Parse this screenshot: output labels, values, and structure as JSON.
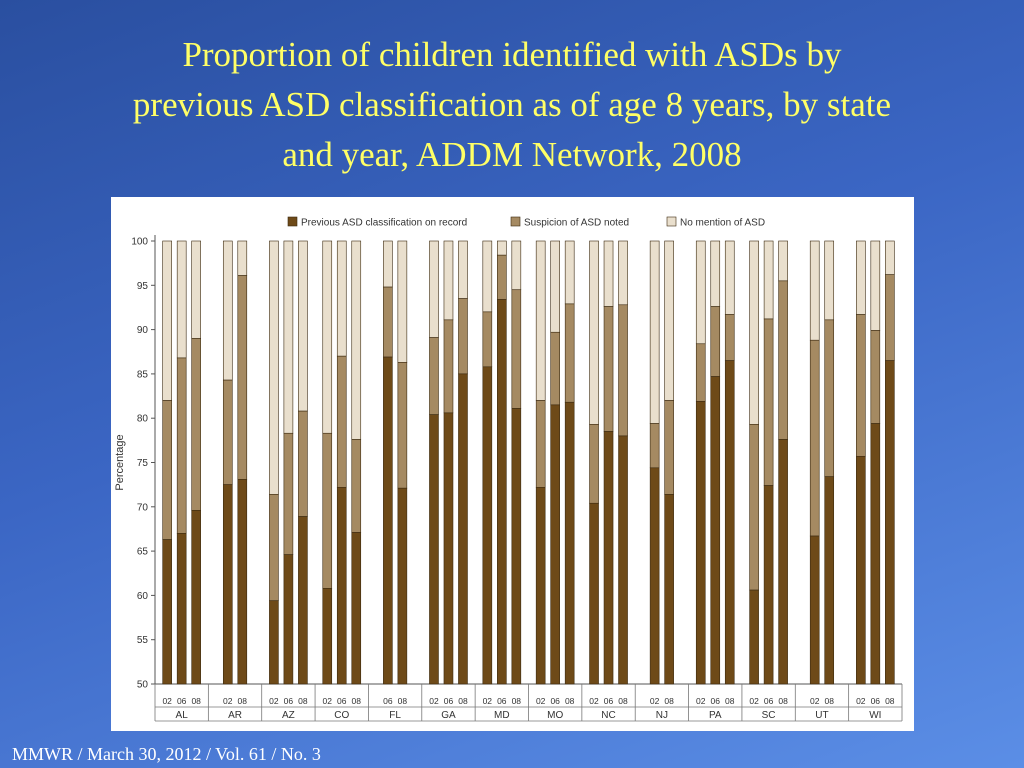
{
  "slide": {
    "title_lines": [
      "Proportion of children identified with ASDs by",
      "previous ASD classification as of age 8 years, by state",
      "and year, ADDM Network, 2008"
    ],
    "footer": "MMWR / March 30, 2012 / Vol. 61 / No. 3"
  },
  "colors": {
    "previous": "#6e4a18",
    "suspicion": "#a58a62",
    "none": "#e9dfcd",
    "bar_edge": "#3c2a10"
  },
  "chart_data": {
    "type": "bar",
    "stacked": true,
    "ylabel": "Percentage",
    "ylim": [
      50,
      100
    ],
    "yticks": [
      50,
      55,
      60,
      65,
      70,
      75,
      80,
      85,
      90,
      95,
      100
    ],
    "legend_position": "top",
    "grid": false,
    "series": [
      {
        "name": "Previous ASD classification on record",
        "color_key": "previous"
      },
      {
        "name": "Suspicion of ASD noted",
        "color_key": "suspicion"
      },
      {
        "name": "No mention of ASD",
        "color_key": "none"
      }
    ],
    "groups": [
      {
        "state": "AL",
        "bars": [
          {
            "year": "02",
            "previous": 66.3,
            "suspicion_top": 82.0
          },
          {
            "year": "06",
            "previous": 67.0,
            "suspicion_top": 86.8
          },
          {
            "year": "08",
            "previous": 69.6,
            "suspicion_top": 89.0
          }
        ]
      },
      {
        "state": "AR",
        "bars": [
          {
            "year": "02",
            "previous": 72.5,
            "suspicion_top": 84.3
          },
          {
            "year": "08",
            "previous": 73.1,
            "suspicion_top": 96.1
          }
        ]
      },
      {
        "state": "AZ",
        "bars": [
          {
            "year": "02",
            "previous": 59.4,
            "suspicion_top": 71.4
          },
          {
            "year": "06",
            "previous": 64.6,
            "suspicion_top": 78.3
          },
          {
            "year": "08",
            "previous": 68.9,
            "suspicion_top": 80.8
          }
        ]
      },
      {
        "state": "CO",
        "bars": [
          {
            "year": "02",
            "previous": 60.8,
            "suspicion_top": 78.3
          },
          {
            "year": "06",
            "previous": 72.2,
            "suspicion_top": 87.0
          },
          {
            "year": "08",
            "previous": 67.1,
            "suspicion_top": 77.6
          }
        ]
      },
      {
        "state": "FL",
        "bars": [
          {
            "year": "06",
            "previous": 86.9,
            "suspicion_top": 94.8
          },
          {
            "year": "08",
            "previous": 72.1,
            "suspicion_top": 86.3
          }
        ]
      },
      {
        "state": "GA",
        "bars": [
          {
            "year": "02",
            "previous": 80.4,
            "suspicion_top": 89.1
          },
          {
            "year": "06",
            "previous": 80.6,
            "suspicion_top": 91.1
          },
          {
            "year": "08",
            "previous": 85.0,
            "suspicion_top": 93.5
          }
        ]
      },
      {
        "state": "MD",
        "bars": [
          {
            "year": "02",
            "previous": 85.8,
            "suspicion_top": 92.0
          },
          {
            "year": "06",
            "previous": 93.4,
            "suspicion_top": 98.4
          },
          {
            "year": "08",
            "previous": 81.1,
            "suspicion_top": 94.5
          }
        ]
      },
      {
        "state": "MO",
        "bars": [
          {
            "year": "02",
            "previous": 72.2,
            "suspicion_top": 82.0
          },
          {
            "year": "06",
            "previous": 81.5,
            "suspicion_top": 89.7
          },
          {
            "year": "08",
            "previous": 81.8,
            "suspicion_top": 92.9
          }
        ]
      },
      {
        "state": "NC",
        "bars": [
          {
            "year": "02",
            "previous": 70.4,
            "suspicion_top": 79.3
          },
          {
            "year": "06",
            "previous": 78.5,
            "suspicion_top": 92.6
          },
          {
            "year": "08",
            "previous": 78.0,
            "suspicion_top": 92.8
          }
        ]
      },
      {
        "state": "NJ",
        "bars": [
          {
            "year": "02",
            "previous": 74.4,
            "suspicion_top": 79.4
          },
          {
            "year": "08",
            "previous": 71.4,
            "suspicion_top": 82.0
          }
        ]
      },
      {
        "state": "PA",
        "bars": [
          {
            "year": "02",
            "previous": 81.9,
            "suspicion_top": 88.4
          },
          {
            "year": "06",
            "previous": 84.7,
            "suspicion_top": 92.6
          },
          {
            "year": "08",
            "previous": 86.5,
            "suspicion_top": 91.7
          }
        ]
      },
      {
        "state": "SC",
        "bars": [
          {
            "year": "02",
            "previous": 60.6,
            "suspicion_top": 79.3
          },
          {
            "year": "06",
            "previous": 72.4,
            "suspicion_top": 91.2
          },
          {
            "year": "08",
            "previous": 77.6,
            "suspicion_top": 95.5
          }
        ]
      },
      {
        "state": "UT",
        "bars": [
          {
            "year": "02",
            "previous": 66.7,
            "suspicion_top": 88.8
          },
          {
            "year": "08",
            "previous": 73.4,
            "suspicion_top": 91.1
          }
        ]
      },
      {
        "state": "WI",
        "bars": [
          {
            "year": "02",
            "previous": 75.7,
            "suspicion_top": 91.7
          },
          {
            "year": "06",
            "previous": 79.4,
            "suspicion_top": 89.9
          },
          {
            "year": "08",
            "previous": 86.5,
            "suspicion_top": 96.2
          }
        ]
      }
    ]
  }
}
